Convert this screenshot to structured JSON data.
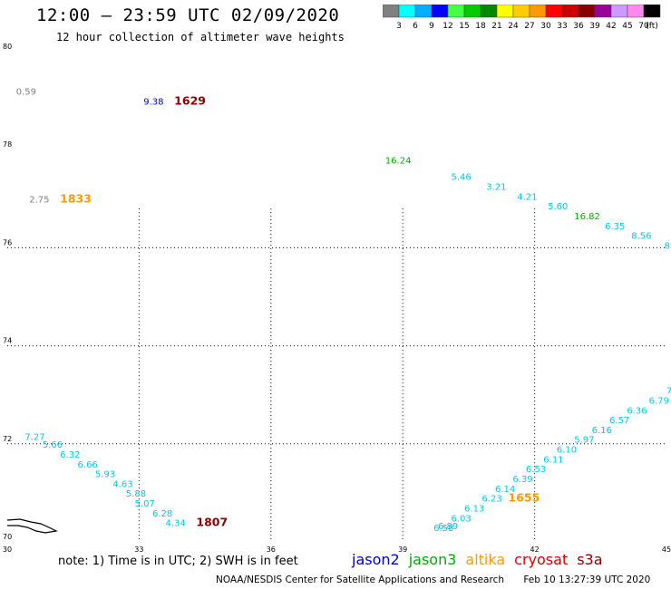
{
  "title": "12:00 – 23:59 UTC 02/09/2020",
  "subtitle": "12 hour collection of altimeter wave heights",
  "colorbar": {
    "colors": [
      "#808080",
      "#00ffff",
      "#00b0ff",
      "#0000ff",
      "#44ff44",
      "#00cc00",
      "#008800",
      "#ffff00",
      "#ffcc00",
      "#ff9900",
      "#ff0000",
      "#cc0000",
      "#880000",
      "#990099",
      "#cc99ff",
      "#ff88ee",
      "#000000"
    ],
    "labels": [
      "3",
      "6",
      "9",
      "12",
      "15",
      "18",
      "21",
      "24",
      "27",
      "30",
      "33",
      "36",
      "39",
      "42",
      "45",
      "70",
      "(ft)"
    ]
  },
  "axes": {
    "lon_ticks": [
      "30",
      "33",
      "36",
      "39",
      "42",
      "45"
    ],
    "lat_ticks": [
      "70",
      "72",
      "74",
      "76",
      "78",
      "80"
    ],
    "lon_range": [
      30,
      45
    ],
    "lat_range": [
      70,
      80
    ]
  },
  "observations": [
    {
      "text": "0.59",
      "lon": 30.2,
      "lat": 79.12,
      "color": "#808080"
    },
    {
      "text": "9.38",
      "lon": 33.1,
      "lat": 78.92,
      "color": "#0000cc"
    },
    {
      "text": "1629",
      "lon": 33.8,
      "lat": 78.92,
      "color": "#880000",
      "bold": true
    },
    {
      "text": "16.24",
      "lon": 38.6,
      "lat": 77.72,
      "color": "#00aa00"
    },
    {
      "text": "5.46",
      "lon": 40.1,
      "lat": 77.38,
      "color": "#00c8e8"
    },
    {
      "text": "3.21",
      "lon": 40.9,
      "lat": 77.18,
      "color": "#00c8e8"
    },
    {
      "text": "4.21",
      "lon": 41.6,
      "lat": 76.98,
      "color": "#00c8e8"
    },
    {
      "text": "5.60",
      "lon": 42.3,
      "lat": 76.78,
      "color": "#00c8e8"
    },
    {
      "text": "16.82",
      "lon": 42.9,
      "lat": 76.58,
      "color": "#00aa00"
    },
    {
      "text": "6.35",
      "lon": 43.6,
      "lat": 76.38,
      "color": "#00c8e8"
    },
    {
      "text": "8.56",
      "lon": 44.2,
      "lat": 76.18,
      "color": "#00c8e8"
    },
    {
      "text": "8.",
      "lon": 44.95,
      "lat": 75.98,
      "color": "#00c8e8"
    },
    {
      "text": "2.75",
      "lon": 30.5,
      "lat": 76.92,
      "color": "#808080"
    },
    {
      "text": "1833",
      "lon": 31.2,
      "lat": 76.92,
      "color": "#ff9900",
      "bold": true
    },
    {
      "text": "7.27",
      "lon": 30.4,
      "lat": 72.08,
      "color": "#00c8e8"
    },
    {
      "text": "5.66",
      "lon": 30.8,
      "lat": 71.92,
      "color": "#00c8e8"
    },
    {
      "text": "6.32",
      "lon": 31.2,
      "lat": 71.72,
      "color": "#00c8e8"
    },
    {
      "text": "6.66",
      "lon": 31.6,
      "lat": 71.52,
      "color": "#00c8e8"
    },
    {
      "text": "5.93",
      "lon": 32.0,
      "lat": 71.32,
      "color": "#00c8e8"
    },
    {
      "text": "4.63",
      "lon": 32.4,
      "lat": 71.12,
      "color": "#00c8e8"
    },
    {
      "text": "5.88",
      "lon": 32.7,
      "lat": 70.92,
      "color": "#00c8e8"
    },
    {
      "text": "5.07",
      "lon": 32.9,
      "lat": 70.72,
      "color": "#00c8e8"
    },
    {
      "text": "6.28",
      "lon": 33.3,
      "lat": 70.52,
      "color": "#00c8e8"
    },
    {
      "text": "4.34",
      "lon": 33.6,
      "lat": 70.32,
      "color": "#00c8e8"
    },
    {
      "text": "1807",
      "lon": 34.3,
      "lat": 70.32,
      "color": "#880000",
      "bold": true
    },
    {
      "text": "6.58",
      "lon": 39.7,
      "lat": 70.22,
      "color": "#00c8e8"
    },
    {
      "text": "6.89",
      "lon": 39.8,
      "lat": 70.26,
      "color": "#00c8e8"
    },
    {
      "text": "6.03",
      "lon": 40.1,
      "lat": 70.42,
      "color": "#00c8e8"
    },
    {
      "text": "6.13",
      "lon": 40.4,
      "lat": 70.62,
      "color": "#00c8e8"
    },
    {
      "text": "6.23",
      "lon": 40.8,
      "lat": 70.82,
      "color": "#00c8e8"
    },
    {
      "text": "6.14",
      "lon": 41.1,
      "lat": 71.02,
      "color": "#00c8e8"
    },
    {
      "text": "1655",
      "lon": 41.4,
      "lat": 70.82,
      "color": "#ff9900",
      "bold": true
    },
    {
      "text": "6.39",
      "lon": 41.5,
      "lat": 71.22,
      "color": "#00c8e8"
    },
    {
      "text": "6.53",
      "lon": 41.8,
      "lat": 71.42,
      "color": "#00c8e8"
    },
    {
      "text": "6.11",
      "lon": 42.2,
      "lat": 71.62,
      "color": "#00c8e8"
    },
    {
      "text": "6.10",
      "lon": 42.5,
      "lat": 71.82,
      "color": "#00c8e8"
    },
    {
      "text": "5.97",
      "lon": 42.9,
      "lat": 72.02,
      "color": "#00c8e8"
    },
    {
      "text": "6.16",
      "lon": 43.3,
      "lat": 72.22,
      "color": "#00c8e8"
    },
    {
      "text": "6.57",
      "lon": 43.7,
      "lat": 72.42,
      "color": "#00c8e8"
    },
    {
      "text": "6.36",
      "lon": 44.1,
      "lat": 72.62,
      "color": "#00c8e8"
    },
    {
      "text": "6.79",
      "lon": 44.6,
      "lat": 72.82,
      "color": "#00c8e8"
    },
    {
      "text": "7",
      "lon": 45.0,
      "lat": 73.02,
      "color": "#00c8e8"
    }
  ],
  "note": "note: 1) Time is in UTC; 2) SWH is in feet",
  "legend": [
    {
      "label": "jason2",
      "color": "#0000cc"
    },
    {
      "label": "jason3",
      "color": "#00aa00"
    },
    {
      "label": "altika",
      "color": "#ff9900"
    },
    {
      "label": "cryosat",
      "color": "#dd0000"
    },
    {
      "label": "s3a",
      "color": "#880000"
    }
  ],
  "footer": "NOAA/NESDIS Center for Satellite Applications and Research",
  "footer_timestamp": "Feb 10 13:27:39 UTC 2020"
}
